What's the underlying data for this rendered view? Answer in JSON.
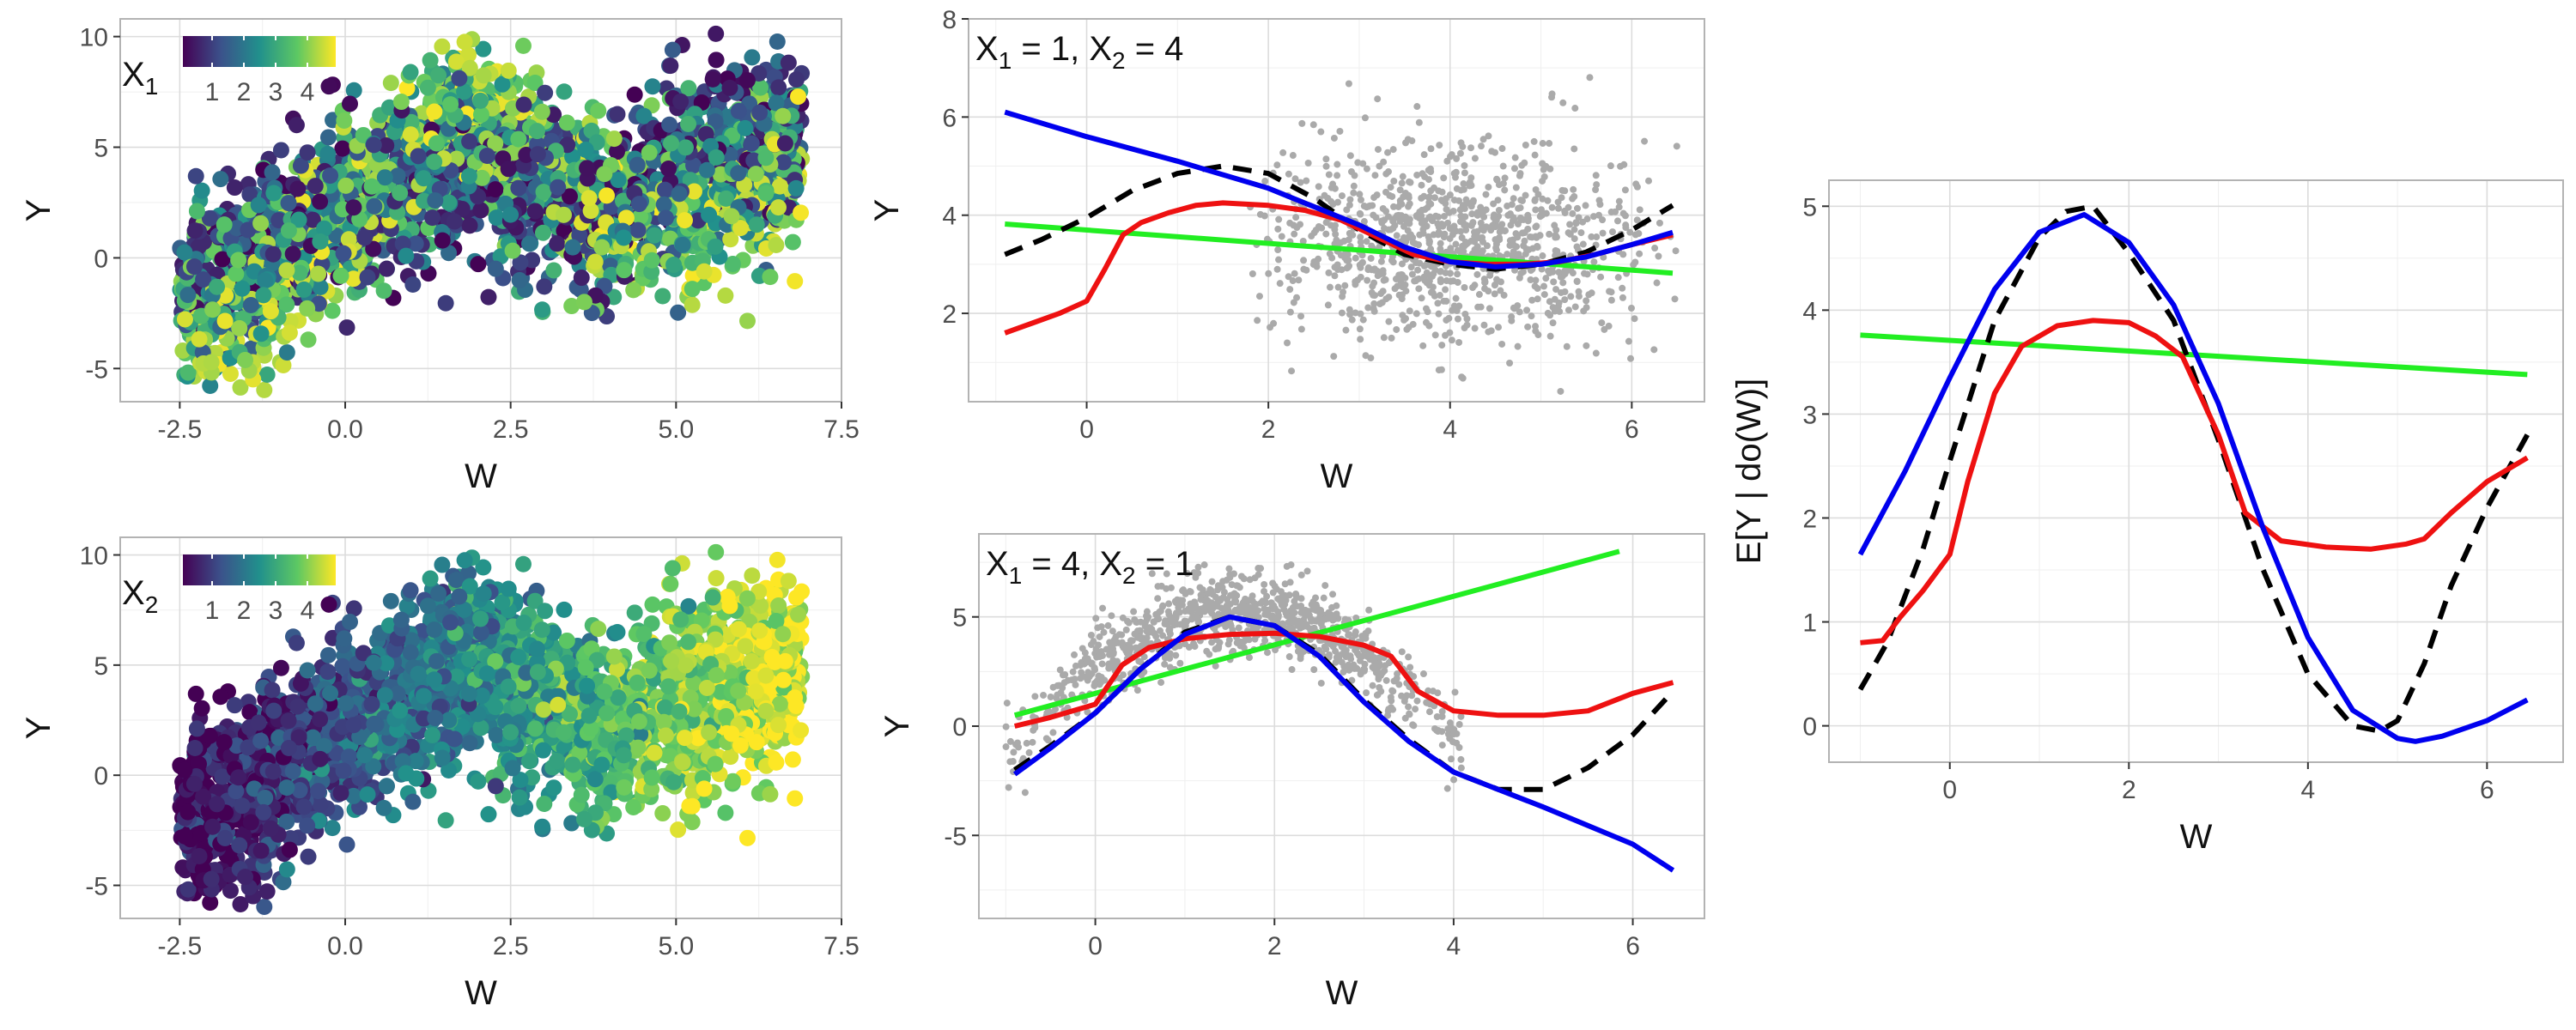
{
  "colors": {
    "blue": "#0000ee",
    "red": "#ee1111",
    "green": "#22ee22",
    "black": "#000000",
    "gray_points": "#aaaaaa",
    "viridis": [
      "#440154",
      "#3b528b",
      "#21908c",
      "#5dc863",
      "#fde725"
    ]
  },
  "chart_data": [
    {
      "id": "x1_scatter",
      "type": "scatter",
      "xlabel": "W",
      "ylabel": "Y",
      "xlim": [
        -3.4,
        7.5
      ],
      "ylim": [
        -6.5,
        10.8
      ],
      "xticks": [
        "-2.5",
        "0.0",
        "2.5",
        "5.0",
        "7.5"
      ],
      "xtick_values": [
        -2.5,
        0,
        2.5,
        5,
        7.5
      ],
      "yticks": [
        "-5",
        "0",
        "5",
        "10"
      ],
      "ytick_values": [
        -5,
        0,
        5,
        10
      ],
      "legend": {
        "title": "X",
        "title_sub": "1",
        "labels": [
          "1",
          "2",
          "3",
          "4"
        ],
        "placement": "top-left",
        "colormap": "viridis"
      },
      "color_variable": "X1",
      "description_of_points": "about 2500 points; W range -2.5 to 7; Y mostly between -5 and 10"
    },
    {
      "id": "x2_scatter",
      "type": "scatter",
      "xlabel": "W",
      "ylabel": "Y",
      "xlim": [
        -3.4,
        7.5
      ],
      "ylim": [
        -6.5,
        10.8
      ],
      "xticks": [
        "-2.5",
        "0.0",
        "2.5",
        "5.0",
        "7.5"
      ],
      "xtick_values": [
        -2.5,
        0,
        2.5,
        5,
        7.5
      ],
      "yticks": [
        "-5",
        "0",
        "5",
        "10"
      ],
      "ytick_values": [
        -5,
        0,
        5,
        10
      ],
      "legend": {
        "title": "X",
        "title_sub": "2",
        "labels": [
          "1",
          "2",
          "3",
          "4"
        ],
        "placement": "top-left",
        "colormap": "viridis"
      },
      "color_variable": "X2"
    },
    {
      "id": "cond_x1_1_x2_4",
      "type": "line",
      "annotation": {
        "parts": [
          "X",
          "1",
          " = 1, X",
          "2",
          " = 4"
        ]
      },
      "xlabel": "W",
      "ylabel": "Y",
      "xlim": [
        -1.3,
        6.8
      ],
      "ylim": [
        0.2,
        8
      ],
      "xticks": [
        "0",
        "2",
        "4",
        "6"
      ],
      "xtick_values": [
        0,
        2,
        4,
        6
      ],
      "yticks": [
        "2",
        "4",
        "6",
        "8"
      ],
      "ytick_values": [
        2,
        4,
        6,
        8
      ],
      "series": [
        {
          "name": "blue",
          "color": "#0000ee",
          "style": "solid",
          "x": [
            -0.9,
            0,
            1,
            2,
            3,
            3.5,
            4,
            4.5,
            5,
            5.5,
            6,
            6.45
          ],
          "y": [
            6.1,
            5.6,
            5.1,
            4.55,
            3.8,
            3.35,
            3.05,
            2.95,
            3.0,
            3.15,
            3.4,
            3.65
          ]
        },
        {
          "name": "black",
          "color": "#000000",
          "style": "dashed",
          "x": [
            -0.9,
            -0.5,
            0,
            0.5,
            1,
            1.5,
            2,
            2.5,
            3,
            3.5,
            4,
            4.5,
            5,
            5.5,
            6,
            6.45
          ],
          "y": [
            3.2,
            3.5,
            3.95,
            4.5,
            4.85,
            5.0,
            4.85,
            4.35,
            3.7,
            3.2,
            3.0,
            2.9,
            3.0,
            3.25,
            3.7,
            4.2
          ]
        },
        {
          "name": "red",
          "color": "#ee1111",
          "style": "solid",
          "x": [
            -0.9,
            -0.6,
            -0.3,
            0,
            0.2,
            0.4,
            0.6,
            0.9,
            1.2,
            1.5,
            2,
            2.4,
            2.8,
            3.2,
            3.6,
            4,
            4.4,
            4.8,
            5.2,
            5.6,
            6,
            6.45
          ],
          "y": [
            1.6,
            1.8,
            2.0,
            2.25,
            2.9,
            3.6,
            3.85,
            4.05,
            4.2,
            4.25,
            4.2,
            4.1,
            3.9,
            3.55,
            3.2,
            3.05,
            3.0,
            3.0,
            3.05,
            3.2,
            3.4,
            3.6
          ]
        },
        {
          "name": "green",
          "color": "#22ee22",
          "style": "solid",
          "x": [
            -0.9,
            6.45
          ],
          "y": [
            3.82,
            2.82
          ]
        },
        {
          "name": "points",
          "type": "scatter",
          "color": "#aaaaaa",
          "description": "approx. 1000 gray points centered near W=4, Y=3.5"
        }
      ]
    },
    {
      "id": "cond_x1_4_x2_1",
      "type": "line",
      "annotation": {
        "parts": [
          "X",
          "1",
          " = 4, X",
          "2",
          " = 1"
        ]
      },
      "xlabel": "W",
      "ylabel": "Y",
      "xlim": [
        -1.3,
        6.8
      ],
      "ylim": [
        -8.8,
        8.8
      ],
      "xticks": [
        "0",
        "2",
        "4",
        "6"
      ],
      "xtick_values": [
        0,
        2,
        4,
        6
      ],
      "yticks": [
        "-5",
        "0",
        "5"
      ],
      "ytick_values": [
        -5,
        0,
        5
      ],
      "series": [
        {
          "name": "blue",
          "color": "#0000ee",
          "style": "solid",
          "x": [
            -0.9,
            -0.5,
            0,
            0.5,
            1,
            1.5,
            2,
            2.5,
            3,
            3.5,
            4,
            5,
            6,
            6.45
          ],
          "y": [
            -2.2,
            -1.0,
            0.6,
            2.6,
            4.2,
            5.0,
            4.6,
            3.2,
            1.1,
            -0.7,
            -2.1,
            -3.7,
            -5.4,
            -6.6
          ]
        },
        {
          "name": "black",
          "color": "#000000",
          "style": "dashed",
          "x": [
            -0.9,
            -0.5,
            0,
            0.5,
            1,
            1.5,
            2,
            2.5,
            3,
            3.5,
            4,
            4.5,
            5,
            5.5,
            6,
            6.45
          ],
          "y": [
            -2.0,
            -0.9,
            0.6,
            2.6,
            4.3,
            5.0,
            4.6,
            3.3,
            1.2,
            -0.6,
            -2.1,
            -2.9,
            -2.9,
            -1.9,
            -0.4,
            1.6
          ]
        },
        {
          "name": "red",
          "color": "#ee1111",
          "style": "solid",
          "x": [
            -0.9,
            -0.5,
            0,
            0.3,
            0.6,
            1,
            1.5,
            2,
            2.5,
            3,
            3.3,
            3.6,
            4,
            4.5,
            5,
            5.5,
            6,
            6.45
          ],
          "y": [
            0.0,
            0.4,
            1.0,
            2.8,
            3.6,
            4.0,
            4.2,
            4.25,
            4.1,
            3.7,
            3.2,
            1.6,
            0.7,
            0.5,
            0.5,
            0.7,
            1.5,
            2.0
          ]
        },
        {
          "name": "green",
          "color": "#22ee22",
          "style": "solid",
          "x": [
            -0.9,
            5.85
          ],
          "y": [
            0.5,
            8.0
          ]
        },
        {
          "name": "points",
          "type": "scatter",
          "color": "#aaaaaa",
          "description": "approx. 1000 gray points following an arch peaking near W=1.5, Y=5"
        }
      ]
    },
    {
      "id": "interventional",
      "type": "line",
      "xlabel": "W",
      "ylabel": "E[Y | do(W)]",
      "xlim": [
        -1.35,
        6.85
      ],
      "ylim": [
        -0.35,
        5.25
      ],
      "xticks": [
        "0",
        "2",
        "4",
        "6"
      ],
      "xtick_values": [
        0,
        2,
        4,
        6
      ],
      "yticks": [
        "0",
        "1",
        "2",
        "3",
        "4",
        "5"
      ],
      "ytick_values": [
        0,
        1,
        2,
        3,
        4,
        5
      ],
      "series": [
        {
          "name": "blue",
          "color": "#0000ee",
          "style": "solid",
          "x": [
            -1.0,
            -0.5,
            0,
            0.5,
            1,
            1.5,
            2,
            2.5,
            3,
            3.5,
            4,
            4.5,
            5,
            5.2,
            5.5,
            6,
            6.45
          ],
          "y": [
            1.65,
            2.45,
            3.35,
            4.2,
            4.75,
            4.92,
            4.65,
            4.05,
            3.1,
            1.9,
            0.85,
            0.15,
            -0.12,
            -0.15,
            -0.1,
            0.05,
            0.25
          ]
        },
        {
          "name": "black",
          "color": "#000000",
          "style": "dashed",
          "x": [
            -1.0,
            -0.7,
            -0.3,
            0,
            0.5,
            1,
            1.3,
            1.6,
            2,
            2.5,
            3,
            3.5,
            4,
            4.5,
            4.8,
            5,
            5.3,
            5.6,
            6,
            6.45
          ],
          "y": [
            0.35,
            0.8,
            1.7,
            2.55,
            3.9,
            4.7,
            4.95,
            5.0,
            4.55,
            3.9,
            2.75,
            1.5,
            0.5,
            0.0,
            -0.05,
            0.05,
            0.6,
            1.35,
            2.1,
            2.8
          ]
        },
        {
          "name": "red",
          "color": "#ee1111",
          "style": "solid",
          "x": [
            -1.0,
            -0.75,
            -0.55,
            -0.3,
            0,
            0.2,
            0.5,
            0.8,
            1.2,
            1.6,
            2,
            2.3,
            2.6,
            3,
            3.3,
            3.7,
            4.2,
            4.7,
            5.1,
            5.3,
            5.6,
            6,
            6.45
          ],
          "y": [
            0.8,
            0.82,
            1.05,
            1.3,
            1.65,
            2.35,
            3.2,
            3.65,
            3.85,
            3.9,
            3.88,
            3.75,
            3.55,
            2.8,
            2.05,
            1.78,
            1.72,
            1.7,
            1.75,
            1.8,
            2.05,
            2.35,
            2.58
          ]
        },
        {
          "name": "green",
          "color": "#22ee22",
          "style": "solid",
          "x": [
            -1.0,
            6.45
          ],
          "y": [
            3.76,
            3.38
          ]
        }
      ]
    }
  ]
}
